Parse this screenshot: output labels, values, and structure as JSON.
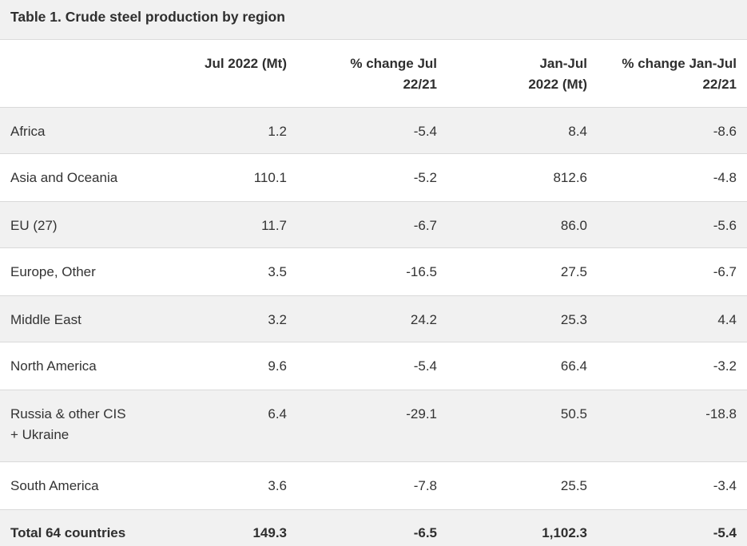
{
  "table": {
    "caption": "Table 1. Crude steel production by region",
    "headers": {
      "region": "",
      "jul": "Jul 2022 (Mt)",
      "pct_jul_line1": "% change Jul",
      "pct_jul_line2": "22/21",
      "janjul_line1": "Jan-Jul",
      "janjul_line2": "2022 (Mt)",
      "pct_janjul_line1": "% change Jan-Jul",
      "pct_janjul_line2": "22/21"
    },
    "rows": [
      {
        "region": "Africa",
        "jul": "1.2",
        "pct_jul": "-5.4",
        "janjul": "8.4",
        "pct_janjul": "-8.6"
      },
      {
        "region": "Asia and Oceania",
        "jul": "110.1",
        "pct_jul": "-5.2",
        "janjul": "812.6",
        "pct_janjul": "-4.8"
      },
      {
        "region": "EU (27)",
        "jul": "11.7",
        "pct_jul": "-6.7",
        "janjul": "86.0",
        "pct_janjul": "-5.6"
      },
      {
        "region": "Europe, Other",
        "jul": "3.5",
        "pct_jul": "-16.5",
        "janjul": "27.5",
        "pct_janjul": "-6.7"
      },
      {
        "region": "Middle East",
        "jul": "3.2",
        "pct_jul": "24.2",
        "janjul": "25.3",
        "pct_janjul": "4.4"
      },
      {
        "region": "North America",
        "jul": "9.6",
        "pct_jul": "-5.4",
        "janjul": "66.4",
        "pct_janjul": "-3.2"
      },
      {
        "region_line1": "Russia & other CIS",
        "region_line2": "+ Ukraine",
        "jul": "6.4",
        "pct_jul": "-29.1",
        "janjul": "50.5",
        "pct_janjul": "-18.8"
      },
      {
        "region": "South America",
        "jul": "3.6",
        "pct_jul": "-7.8",
        "janjul": "25.5",
        "pct_janjul": "-3.4"
      }
    ],
    "total": {
      "region": "Total 64 countries",
      "jul": "149.3",
      "pct_jul": "-6.5",
      "janjul": "1,102.3",
      "pct_janjul": "-5.4"
    }
  },
  "colors": {
    "shaded_row": "#f1f1f1",
    "text": "#333333",
    "divider": "#d9d9d9"
  }
}
